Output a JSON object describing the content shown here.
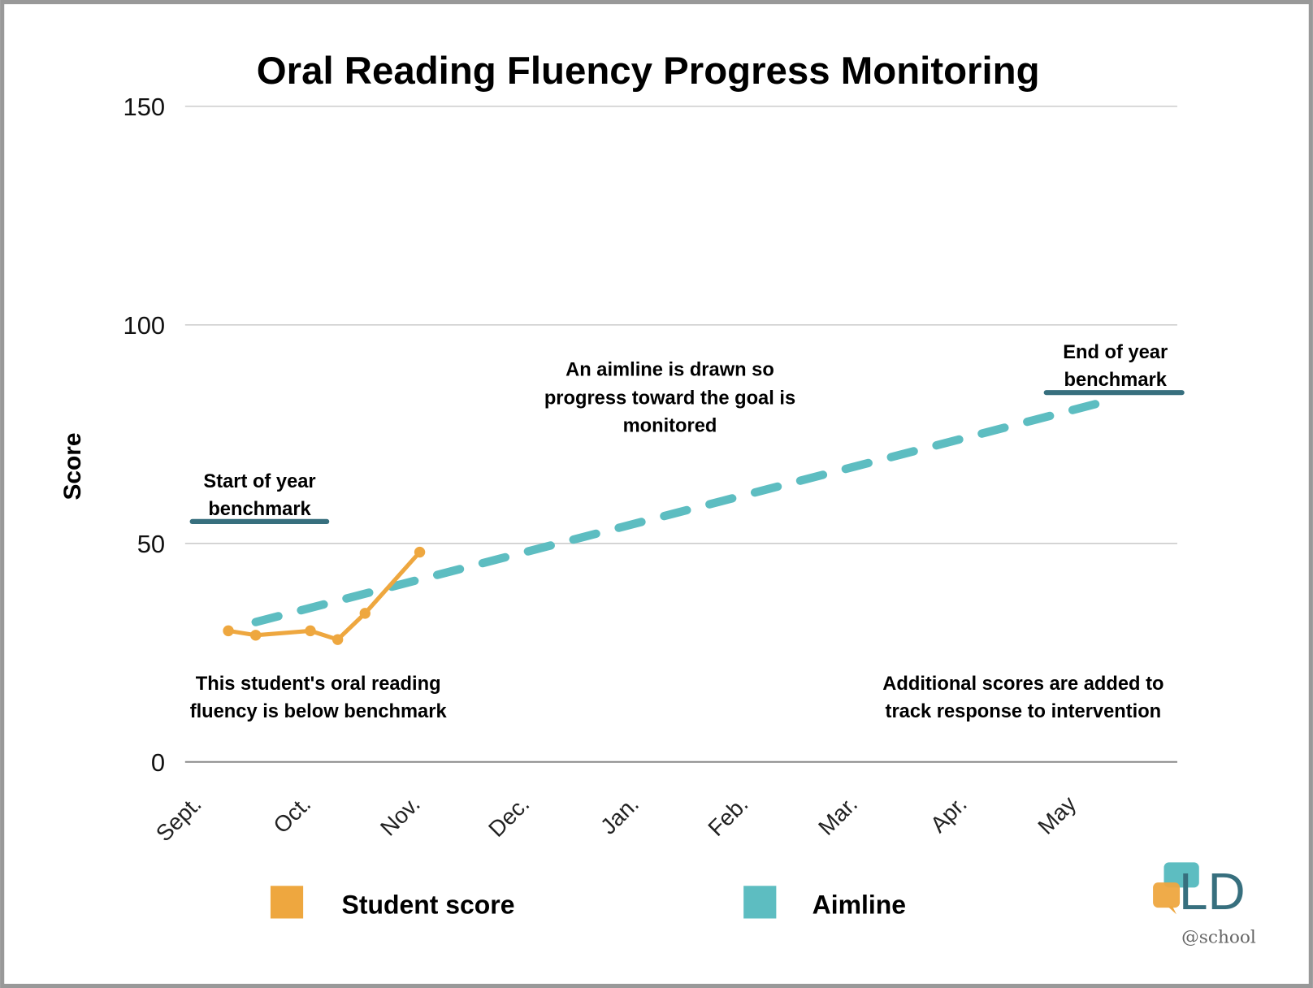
{
  "chart_data": {
    "type": "line",
    "title": "Oral Reading Fluency Progress Monitoring",
    "ylabel": "Score",
    "xlabel": "",
    "ylim": [
      0,
      150
    ],
    "yticks": [
      "0",
      "50",
      "100",
      "150"
    ],
    "categories": [
      "Sept.",
      "Oct.",
      "Nov.",
      "Dec.",
      "Jan.",
      "Feb.",
      "Mar.",
      "Apr.",
      "May"
    ],
    "grid": true,
    "legend_position": "bottom",
    "series": [
      {
        "name": "Student score",
        "color": "#EEA73F",
        "style": "solid-with-markers",
        "x": [
          0.25,
          0.5,
          1.0,
          1.25,
          1.5,
          2.0
        ],
        "y": [
          30,
          29,
          30,
          28,
          34,
          48
        ]
      },
      {
        "name": "Aimline",
        "color": "#5DBDC1",
        "style": "dashed",
        "x": [
          0.5,
          8.2
        ],
        "y": [
          32,
          82
        ]
      }
    ],
    "benchmarks": [
      {
        "label_line1": "Start of year",
        "label_line2": "benchmark",
        "value": 55,
        "x_from": -0.08,
        "x_to": 1.15,
        "color": "#376F7E"
      },
      {
        "label_line1": "End of year",
        "label_line2": "benchmark",
        "value": 84.5,
        "x_from": 7.73,
        "x_to": 8.97,
        "color": "#376F7E"
      }
    ],
    "annotations": {
      "aimline": [
        "An aimline is drawn so",
        "progress toward the goal is",
        "monitored"
      ],
      "below": [
        "This student's oral reading",
        "fluency is below benchmark"
      ],
      "additional": [
        "Additional scores are added to",
        "track response to intervention"
      ]
    }
  },
  "logo": {
    "mark": "LD",
    "sub": "@school"
  }
}
